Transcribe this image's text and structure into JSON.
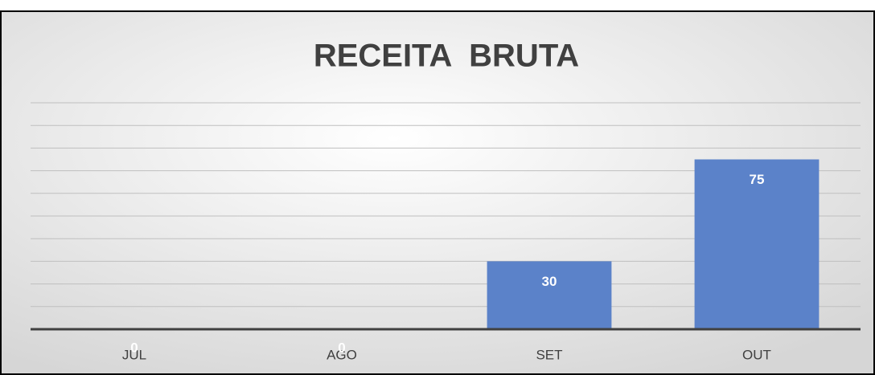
{
  "chart_data": {
    "type": "bar",
    "title": "RECEITA  BRUTA",
    "categories": [
      "JUL",
      "AGO",
      "SET",
      "OUT"
    ],
    "values": [
      0,
      0,
      30,
      75
    ],
    "color": "#5b82c9",
    "ylim": [
      0,
      100
    ],
    "yticks": [
      0,
      10,
      20,
      30,
      40,
      50,
      60,
      70,
      80,
      90,
      100
    ],
    "grid": true
  }
}
